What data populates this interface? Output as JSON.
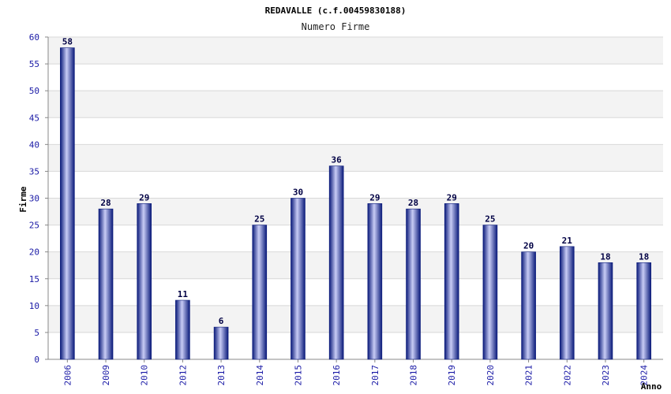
{
  "chart_data": {
    "type": "bar",
    "title": "REDAVALLE (c.f.00459830188)",
    "subtitle": "Numero Firme",
    "xlabel": "Anno",
    "ylabel": "Firme",
    "ylim": [
      0,
      60
    ],
    "yticks": [
      0,
      5,
      10,
      15,
      20,
      25,
      30,
      35,
      40,
      45,
      50,
      55,
      60
    ],
    "grid": true,
    "categories": [
      "2006",
      "2009",
      "2010",
      "2012",
      "2013",
      "2014",
      "2015",
      "2016",
      "2017",
      "2018",
      "2019",
      "2020",
      "2021",
      "2022",
      "2023",
      "2024"
    ],
    "values": [
      58,
      28,
      29,
      11,
      6,
      25,
      30,
      36,
      29,
      28,
      29,
      25,
      20,
      21,
      18,
      18
    ],
    "colors": {
      "bar_dark": "#0a1a7a",
      "bar_light": "#c8ccf5",
      "band": "#f3f3f3",
      "tick_text": "#1a1aa6"
    }
  }
}
